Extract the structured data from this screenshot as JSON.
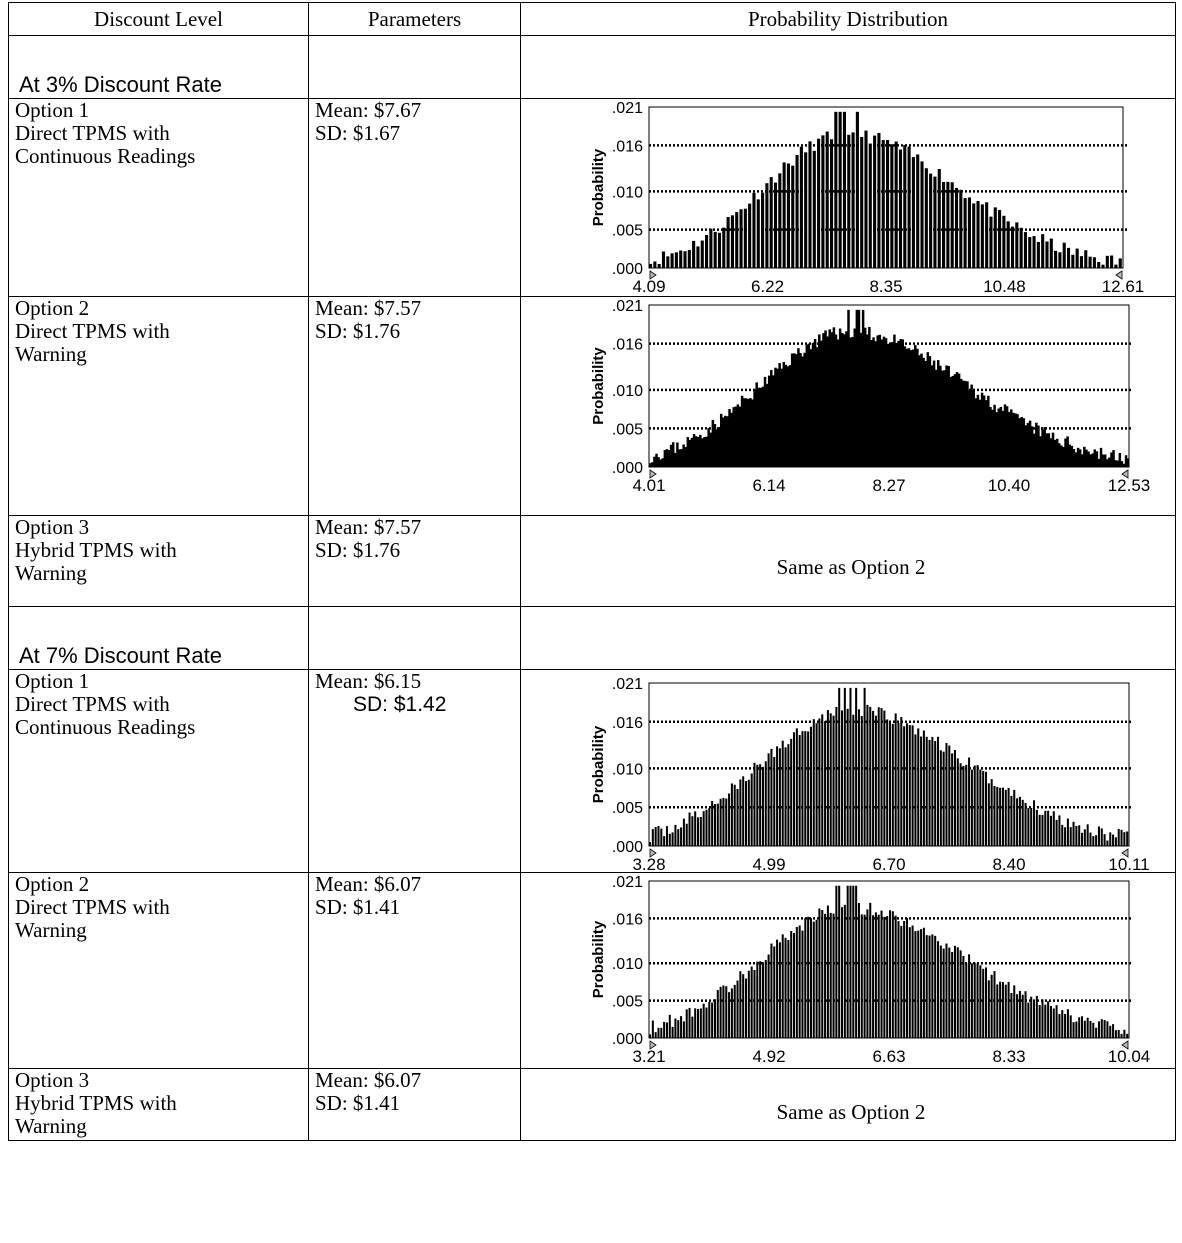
{
  "headers": {
    "discount_level": "Discount Level",
    "parameters": "Parameters",
    "probability_distribution": "Probability Distribution"
  },
  "sections": [
    {
      "label": "At 3% Discount Rate",
      "rows": [
        {
          "option": "Option 1",
          "desc1": "Direct TPMS with",
          "desc2": "Continuous Readings",
          "mean": "Mean: $7.67",
          "sd": "SD: $1.67",
          "same": ""
        },
        {
          "option": "Option 2",
          "desc1": "Direct TPMS with",
          "desc2": "Warning",
          "mean": "Mean: $7.57",
          "sd": "SD: $1.76",
          "same": ""
        },
        {
          "option": "Option 3",
          "desc1": "Hybrid TPMS with",
          "desc2": "Warning",
          "mean": "Mean: $7.57",
          "sd": "SD: $1.76",
          "same": "Same as Option 2"
        }
      ]
    },
    {
      "label": "At 7% Discount Rate",
      "rows": [
        {
          "option": "Option 1",
          "desc1": "Direct TPMS with",
          "desc2": "Continuous Readings",
          "mean": "Mean: $6.15",
          "sd": "SD: $1.42",
          "same": ""
        },
        {
          "option": "Option 2",
          "desc1": "Direct TPMS with",
          "desc2": "Warning",
          "mean": "Mean: $6.07",
          "sd": "SD: $1.41",
          "same": ""
        },
        {
          "option": "Option 3",
          "desc1": "Hybrid TPMS with",
          "desc2": "Warning",
          "mean": "Mean: $6.07",
          "sd": "SD: $1.41",
          "same": "Same as Option 2"
        }
      ]
    }
  ],
  "chart_data": [
    {
      "type": "bar",
      "ylabel": "Probability",
      "y_ticks": [
        ".000",
        ".005",
        ".010",
        ".016",
        ".021"
      ],
      "ylim": [
        0,
        0.021
      ],
      "x_ticks": [
        "4.09",
        "6.22",
        "8.35",
        "10.48",
        "12.61"
      ],
      "xlim": [
        4.09,
        12.61
      ],
      "mean": 7.67,
      "sd": 1.67,
      "density": "sparse"
    },
    {
      "type": "bar",
      "ylabel": "Probability",
      "y_ticks": [
        ".000",
        ".005",
        ".010",
        ".016",
        ".021"
      ],
      "ylim": [
        0,
        0.021
      ],
      "x_ticks": [
        "4.01",
        "6.14",
        "8.27",
        "10.40",
        "12.53"
      ],
      "xlim": [
        4.01,
        12.53
      ],
      "mean": 7.57,
      "sd": 1.76,
      "density": "dense"
    },
    {
      "type": "bar",
      "ylabel": "Probability",
      "y_ticks": [
        ".000",
        ".005",
        ".010",
        ".016",
        ".021"
      ],
      "ylim": [
        0,
        0.021
      ],
      "x_ticks": [
        "3.28",
        "4.99",
        "6.70",
        "8.40",
        "10.11"
      ],
      "xlim": [
        3.28,
        10.11
      ],
      "mean": 6.15,
      "sd": 1.42,
      "density": "medium"
    },
    {
      "type": "bar",
      "ylabel": "Probability",
      "y_ticks": [
        ".000",
        ".005",
        ".010",
        ".016",
        ".021"
      ],
      "ylim": [
        0,
        0.021
      ],
      "x_ticks": [
        "3.21",
        "4.92",
        "6.63",
        "8.33",
        "10.04"
      ],
      "xlim": [
        3.21,
        10.04
      ],
      "mean": 6.07,
      "sd": 1.41,
      "density": "medium"
    }
  ]
}
